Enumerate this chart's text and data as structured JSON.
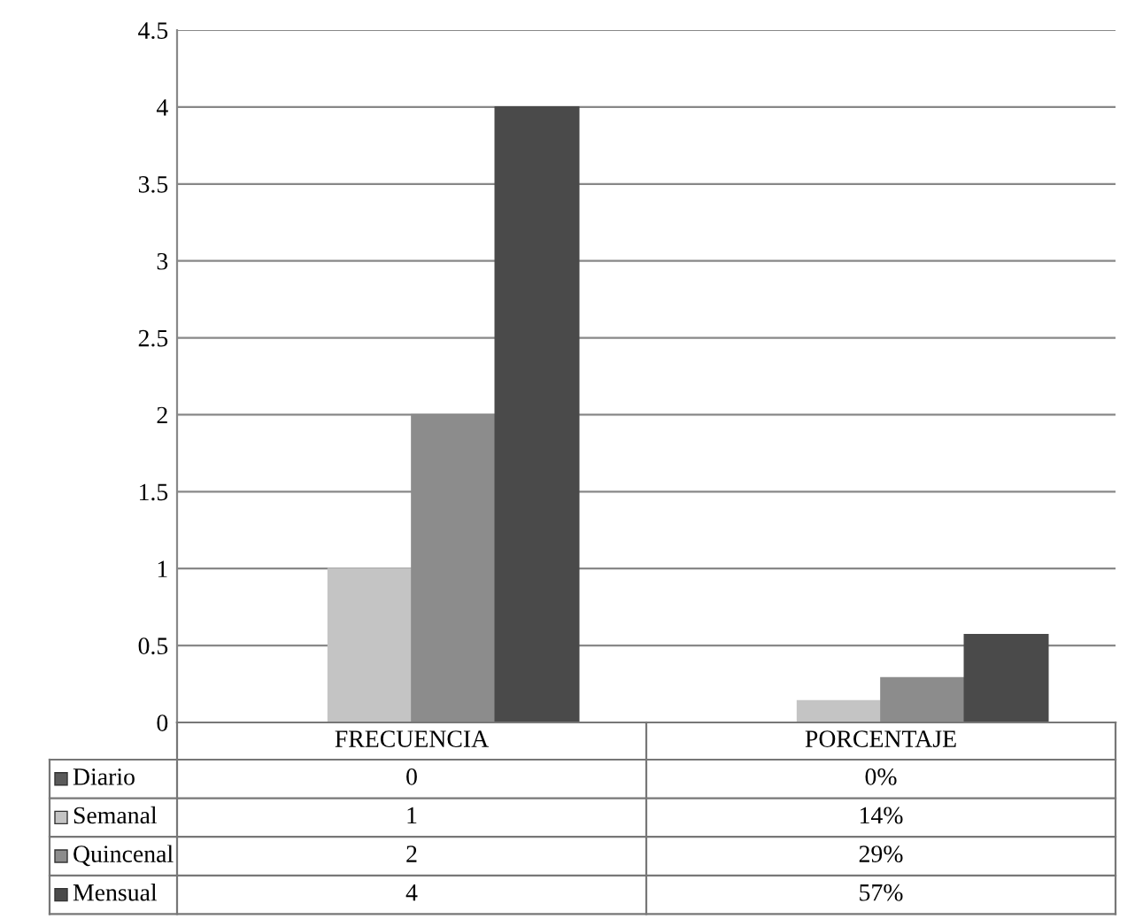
{
  "chart_data": {
    "type": "bar",
    "categories": [
      "FRECUENCIA",
      "PORCENTAJE"
    ],
    "series": [
      {
        "name": "Diario",
        "color": "#5a5a5a",
        "values": [
          0,
          0
        ],
        "value_labels": [
          "0",
          "0%"
        ]
      },
      {
        "name": "Semanal",
        "color": "#c4c4c4",
        "values": [
          1,
          0.14
        ],
        "value_labels": [
          "1",
          "14%"
        ]
      },
      {
        "name": "Quincenal",
        "color": "#8c8c8c",
        "values": [
          2,
          0.29
        ],
        "value_labels": [
          "2",
          "29%"
        ]
      },
      {
        "name": "Mensual",
        "color": "#4a4a4a",
        "values": [
          4,
          0.57
        ],
        "value_labels": [
          "4",
          "57%"
        ]
      }
    ],
    "ylim": [
      0,
      4.5
    ],
    "yticks": [
      0,
      0.5,
      1,
      1.5,
      2,
      2.5,
      3,
      3.5,
      4,
      4.5
    ],
    "grid": "y",
    "legend": "bottom"
  }
}
